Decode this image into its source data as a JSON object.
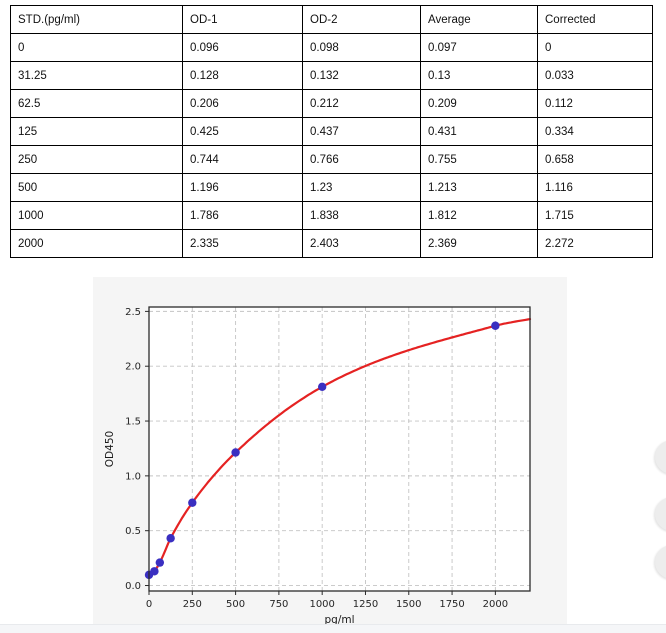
{
  "table": {
    "headers": [
      "STD.(pg/ml)",
      "OD-1",
      "OD-2",
      "Average",
      "Corrected"
    ],
    "rows": [
      [
        "0",
        "0.096",
        "0.098",
        "0.097",
        "0"
      ],
      [
        "31.25",
        "0.128",
        "0.132",
        "0.13",
        "0.033"
      ],
      [
        "62.5",
        "0.206",
        "0.212",
        "0.209",
        "0.112"
      ],
      [
        "125",
        "0.425",
        "0.437",
        "0.431",
        "0.334"
      ],
      [
        "250",
        "0.744",
        "0.766",
        "0.755",
        "0.658"
      ],
      [
        "500",
        "1.196",
        "1.23",
        "1.213",
        "1.116"
      ],
      [
        "1000",
        "1.786",
        "1.838",
        "1.812",
        "1.715"
      ],
      [
        "2000",
        "2.335",
        "2.403",
        "2.369",
        "2.272"
      ]
    ]
  },
  "chart_data": {
    "type": "scatter",
    "title": "",
    "x": [
      0,
      31.25,
      62.5,
      125,
      250,
      500,
      1000,
      2000
    ],
    "y": [
      0.097,
      0.13,
      0.209,
      0.431,
      0.755,
      1.213,
      1.812,
      2.369
    ],
    "xlabel": "pg/ml",
    "ylabel": "OD450",
    "xlim": [
      0,
      2200
    ],
    "ylim": [
      -0.05,
      2.54
    ],
    "x_ticks": [
      0,
      250,
      500,
      750,
      1000,
      1250,
      1500,
      1750,
      2000
    ],
    "x_tick_labels": [
      "0",
      "250",
      "500",
      "750",
      "1000",
      "1250",
      "1500",
      "1750",
      "2000"
    ],
    "y_ticks": [
      0.0,
      0.5,
      1.0,
      1.5,
      2.0,
      2.5
    ],
    "y_tick_labels": [
      "0.0",
      "0.5",
      "1.0",
      "1.5",
      "2.0",
      "2.5"
    ],
    "grid": "dashed",
    "legend": "none",
    "fit_curve": {
      "kind": "4PL-fit-line",
      "color": "#e52222",
      "end_point": [
        2200,
        2.43
      ]
    },
    "point_color": "#3a2fc1",
    "grid_color": "#c4c4c4",
    "spine_color": "#2b2b2b",
    "figure_background": "#f5f5f5",
    "plot_background": "#ffffff"
  },
  "footer_strip": {
    "color": "#f5f6f8"
  },
  "edge_buttons": {
    "color": "#ededed",
    "count": 3
  }
}
